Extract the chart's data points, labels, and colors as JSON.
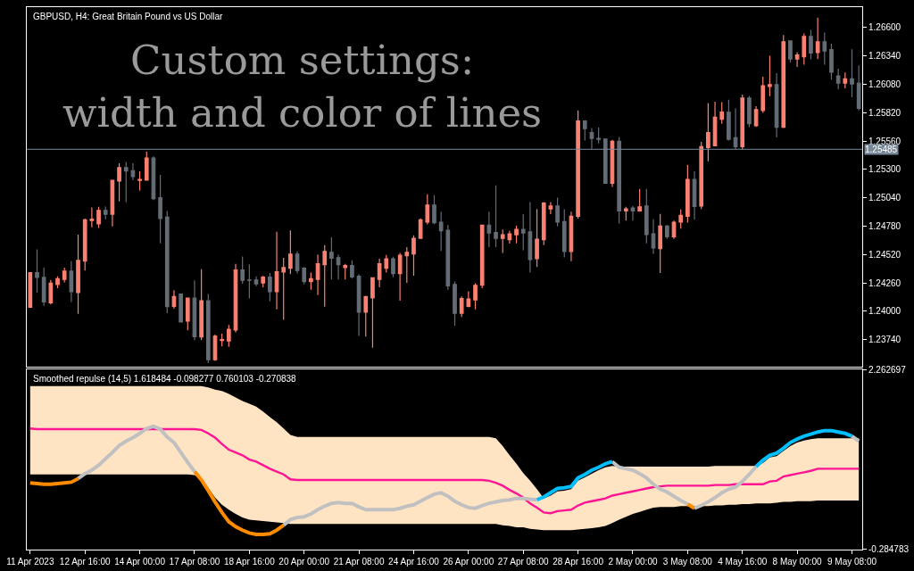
{
  "chart_data": [
    {
      "type": "candlestick",
      "title": "GBPUSD, H4: Great Britain Pound vs US Dollar",
      "annotations": [
        "Custom settings:\nwidth and color of lines"
      ],
      "categories": [
        null,
        null,
        null,
        null,
        null,
        null,
        null,
        null,
        null,
        null,
        null,
        null,
        null,
        null,
        null,
        null,
        null,
        null,
        null,
        null,
        null,
        null,
        null,
        null,
        null,
        null,
        null,
        null,
        null,
        null,
        null,
        null,
        null,
        null,
        null,
        null,
        null,
        null,
        null,
        null,
        null,
        null,
        null,
        null,
        null,
        null,
        null,
        null,
        null,
        null,
        null,
        null,
        null,
        null,
        null,
        null,
        null,
        null,
        null,
        null,
        null,
        null,
        null,
        null,
        null,
        null,
        null,
        null,
        null,
        null,
        null,
        null,
        null,
        null,
        null,
        null,
        null,
        null,
        null,
        null,
        null,
        null,
        null,
        null,
        null,
        null,
        null,
        null,
        null,
        null,
        null,
        null,
        null,
        null,
        null,
        null,
        null,
        null,
        null,
        null,
        null,
        null,
        null,
        null,
        null,
        null,
        null,
        null,
        null,
        null,
        null,
        null,
        null,
        null,
        null,
        null,
        null,
        null,
        null,
        null,
        null,
        null
      ],
      "ohlc": [
        [
          1.24036,
          1.24354,
          1.24036,
          1.24354
        ],
        [
          1.24354,
          1.24567,
          1.24171,
          1.24311
        ],
        [
          1.24311,
          1.244,
          1.2405,
          1.24085
        ],
        [
          1.24077,
          1.24287,
          1.24063,
          1.24257
        ],
        [
          1.24246,
          1.24319,
          1.24211,
          1.24298
        ],
        [
          1.24292,
          1.244,
          1.24265,
          1.24368
        ],
        [
          1.24368,
          1.24459,
          1.24085,
          1.24179
        ],
        [
          1.24171,
          1.24702,
          1.23977,
          1.24467
        ],
        [
          1.24459,
          1.2485,
          1.24373,
          1.24839
        ],
        [
          1.24831,
          1.24952,
          1.24769,
          1.24844
        ],
        [
          1.24801,
          1.24957,
          1.24763,
          1.24925
        ],
        [
          1.24925,
          1.2496,
          1.24844,
          1.2489
        ],
        [
          1.2489,
          1.252,
          1.24777,
          1.252
        ],
        [
          1.25194,
          1.25356,
          1.25006,
          1.25316
        ],
        [
          1.25316,
          1.25369,
          1.24998,
          1.25286
        ],
        [
          1.25289,
          1.25356,
          1.25202,
          1.25235
        ],
        [
          1.252,
          1.25283,
          1.25108,
          1.25208
        ],
        [
          1.25202,
          1.25464,
          1.25202,
          1.25404
        ],
        [
          1.25404,
          1.25421,
          1.25019,
          1.25033
        ],
        [
          1.25041,
          1.25251,
          1.24623,
          1.2485
        ],
        [
          1.24863,
          1.2492,
          1.23982,
          1.24042
        ],
        [
          1.24044,
          1.24193,
          1.24023,
          1.24136
        ],
        [
          1.24158,
          1.24158,
          1.23902,
          1.23902
        ],
        [
          1.2391,
          1.2412,
          1.23826,
          1.2412
        ],
        [
          1.2412,
          1.24284,
          1.23735,
          1.23767
        ],
        [
          1.23764,
          1.24386,
          1.23735,
          1.24096
        ],
        [
          1.24096,
          1.24158,
          1.23525,
          1.23557
        ],
        [
          1.23557,
          1.23786,
          1.23546,
          1.23772
        ],
        [
          1.23732,
          1.23794,
          1.23678,
          1.2374
        ],
        [
          1.23727,
          1.23875,
          1.23673,
          1.23834
        ],
        [
          1.23829,
          1.24435,
          1.23807,
          1.24378
        ],
        [
          1.24378,
          1.24502,
          1.24252,
          1.24284
        ],
        [
          1.24287,
          1.2443,
          1.24117,
          1.24284
        ],
        [
          1.24287,
          1.24319,
          1.2423,
          1.24252
        ],
        [
          1.2426,
          1.24325,
          1.24219,
          1.24314
        ],
        [
          1.24314,
          1.24351,
          1.2409,
          1.24179
        ],
        [
          1.24179,
          1.24728,
          1.24018,
          1.24362
        ],
        [
          1.2436,
          1.24489,
          1.23921,
          1.244
        ],
        [
          1.24395,
          1.24742,
          1.24341,
          1.24524
        ],
        [
          1.24524,
          1.24548,
          1.24346,
          1.24373
        ],
        [
          1.24395,
          1.24405,
          1.24246,
          1.24271
        ],
        [
          1.24271,
          1.24354,
          1.24198,
          1.24298
        ],
        [
          1.24292,
          1.24521,
          1.24149,
          1.24435
        ],
        [
          1.24427,
          1.24607,
          1.24042,
          1.24548
        ],
        [
          1.2454,
          1.24677,
          1.24292,
          1.24486
        ],
        [
          1.24491,
          1.24521,
          1.24292,
          1.24427
        ],
        [
          1.244,
          1.24435,
          1.24292,
          1.24419
        ],
        [
          1.24419,
          1.24467,
          1.243,
          1.24314
        ],
        [
          1.24322,
          1.24338,
          1.23775,
          1.23991
        ],
        [
          1.23991,
          1.24136,
          1.23767,
          1.24136
        ],
        [
          1.24123,
          1.24311,
          1.23665,
          1.24306
        ],
        [
          1.24292,
          1.24481,
          1.24219,
          1.24435
        ],
        [
          1.24395,
          1.24516,
          1.24354,
          1.24481
        ],
        [
          1.24481,
          1.245,
          1.24311,
          1.24346
        ],
        [
          1.24346,
          1.24535,
          1.24098,
          1.24513
        ],
        [
          1.24508,
          1.24588,
          1.2426,
          1.2454
        ],
        [
          1.24526,
          1.24696,
          1.24327,
          1.24669
        ],
        [
          1.24669,
          1.24852,
          1.24669,
          1.24839
        ],
        [
          1.24817,
          1.25073,
          1.24796,
          1.24974
        ],
        [
          1.24974,
          1.25065,
          1.24798,
          1.24812
        ],
        [
          1.24817,
          1.24912,
          1.24553,
          1.24737
        ],
        [
          1.24742,
          1.2479,
          1.24198,
          1.24233
        ],
        [
          1.24246,
          1.24273,
          1.23867,
          1.23982
        ],
        [
          1.23982,
          1.24136,
          1.23947,
          1.24117
        ],
        [
          1.24044,
          1.24184,
          1.24036,
          1.24112
        ],
        [
          1.24104,
          1.24257,
          1.24018,
          1.24238
        ],
        [
          1.24238,
          1.2479,
          1.24211,
          1.2479
        ],
        [
          1.2479,
          1.24912,
          1.24588,
          1.24718
        ],
        [
          1.24723,
          1.25154,
          1.24588,
          1.24669
        ],
        [
          1.24669,
          1.2475,
          1.24535,
          1.24702
        ],
        [
          1.24656,
          1.24737,
          1.24621,
          1.2471
        ],
        [
          1.24702,
          1.24785,
          1.24623,
          1.2475
        ],
        [
          1.2475,
          1.2489,
          1.24559,
          1.24718
        ],
        [
          1.24728,
          1.25,
          1.24354,
          1.24475
        ],
        [
          1.24483,
          1.24938,
          1.24405,
          1.24661
        ],
        [
          1.24656,
          1.25,
          1.24607,
          1.24992
        ],
        [
          1.24938,
          1.25,
          1.2489,
          1.24965
        ],
        [
          1.24965,
          1.25041,
          1.24777,
          1.24817
        ],
        [
          1.24823,
          1.24936,
          1.24494,
          1.24548
        ],
        [
          1.24548,
          1.24912,
          1.24459,
          1.24871
        ],
        [
          1.24871,
          1.25841,
          1.2485,
          1.25744
        ],
        [
          1.25744,
          1.25752,
          1.25566,
          1.25674
        ],
        [
          1.25639,
          1.25679,
          1.2549,
          1.25585
        ],
        [
          1.25585,
          1.25684,
          1.25539,
          1.25577
        ],
        [
          1.25579,
          1.25579,
          1.25173,
          1.25173
        ],
        [
          1.25173,
          1.25571,
          1.2514,
          1.25558
        ],
        [
          1.25558,
          1.25598,
          1.24804,
          1.2492
        ],
        [
          1.2492,
          1.24957,
          1.24831,
          1.24938
        ],
        [
          1.24947,
          1.24965,
          1.24831,
          1.2492
        ],
        [
          1.2492,
          1.25122,
          1.24912,
          1.24957
        ],
        [
          1.24965,
          1.25122,
          1.24623,
          1.24704
        ],
        [
          1.2471,
          1.24844,
          1.24526,
          1.2458
        ],
        [
          1.24575,
          1.24893,
          1.24351,
          1.24782
        ],
        [
          1.24782,
          1.2479,
          1.24664,
          1.24683
        ],
        [
          1.24683,
          1.24831,
          1.24664,
          1.24817
        ],
        [
          1.24817,
          1.24933,
          1.24758,
          1.24879
        ],
        [
          1.24871,
          1.25342,
          1.24812,
          1.25208
        ],
        [
          1.25208,
          1.25283,
          1.24839,
          1.2496
        ],
        [
          1.24965,
          1.25553,
          1.24938,
          1.25509
        ],
        [
          1.25501,
          1.25908,
          1.25375,
          1.25639
        ],
        [
          1.25518,
          1.25921,
          1.25518,
          1.25779
        ],
        [
          1.2576,
          1.25916,
          1.25719,
          1.25827
        ],
        [
          1.25825,
          1.2594,
          1.25566,
          1.25577
        ],
        [
          1.2559,
          1.2586,
          1.25485,
          1.25509
        ],
        [
          1.25509,
          1.25986,
          1.25482,
          1.25954
        ],
        [
          1.25954,
          1.25975,
          1.25687,
          1.25719
        ],
        [
          1.25701,
          1.25881,
          1.2569,
          1.25849
        ],
        [
          1.25841,
          1.2615,
          1.25819,
          1.26067
        ],
        [
          1.26061,
          1.26342,
          1.25973,
          1.26078
        ],
        [
          1.26078,
          1.26183,
          1.25593,
          1.25687
        ],
        [
          1.25687,
          1.26533,
          1.25679,
          1.26471
        ],
        [
          1.26479,
          1.26479,
          1.2628,
          1.26312
        ],
        [
          1.26312,
          1.26374,
          1.26239,
          1.2635
        ],
        [
          1.26333,
          1.26546,
          1.26261,
          1.26519
        ],
        [
          1.26519,
          1.26579,
          1.26309,
          1.26368
        ],
        [
          1.26371,
          1.26692,
          1.26312,
          1.26471
        ],
        [
          1.26471,
          1.26554,
          1.26261,
          1.26385
        ],
        [
          1.26398,
          1.26452,
          1.26123,
          1.26191
        ],
        [
          1.26158,
          1.26223,
          1.26035,
          1.26091
        ],
        [
          1.26091,
          1.26188,
          1.26043,
          1.26131
        ],
        [
          1.26131,
          1.26401,
          1.25962,
          1.26083
        ],
        [
          1.26091,
          1.26253,
          1.25841,
          1.2586
        ]
      ],
      "colors": [
        "#fa8072",
        "#646c76",
        "#646c76",
        "#fa8072",
        "#fa8072",
        "#fa8072",
        "#646c76",
        "#fa8072",
        "#fa8072",
        "#fa8072",
        "#fa8072",
        "#646c76",
        "#fa8072",
        "#fa8072",
        "#646c76",
        "#646c76",
        "#fa8072",
        "#fa8072",
        "#646c76",
        "#646c76",
        "#646c76",
        "#fa8072",
        "#646c76",
        "#fa8072",
        "#646c76",
        "#fa8072",
        "#646c76",
        "#fa8072",
        "#fa8072",
        "#fa8072",
        "#fa8072",
        "#646c76",
        "#646c76",
        "#646c76",
        "#fa8072",
        "#646c76",
        "#fa8072",
        "#fa8072",
        "#fa8072",
        "#646c76",
        "#646c76",
        "#fa8072",
        "#fa8072",
        "#fa8072",
        "#646c76",
        "#646c76",
        "#fa8072",
        "#646c76",
        "#646c76",
        "#fa8072",
        "#fa8072",
        "#fa8072",
        "#fa8072",
        "#646c76",
        "#fa8072",
        "#fa8072",
        "#fa8072",
        "#fa8072",
        "#fa8072",
        "#646c76",
        "#646c76",
        "#646c76",
        "#646c76",
        "#fa8072",
        "#fa8072",
        "#fa8072",
        "#fa8072",
        "#646c76",
        "#646c76",
        "#fa8072",
        "#fa8072",
        "#fa8072",
        "#646c76",
        "#646c76",
        "#fa8072",
        "#fa8072",
        "#fa8072",
        "#646c76",
        "#646c76",
        "#fa8072",
        "#fa8072",
        "#646c76",
        "#646c76",
        "#646c76",
        "#646c76",
        "#fa8072",
        "#646c76",
        "#fa8072",
        "#646c76",
        "#fa8072",
        "#646c76",
        "#646c76",
        "#fa8072",
        "#646c76",
        "#fa8072",
        "#fa8072",
        "#fa8072",
        "#646c76",
        "#fa8072",
        "#fa8072",
        "#fa8072",
        "#fa8072",
        "#646c76",
        "#646c76",
        "#fa8072",
        "#646c76",
        "#fa8072",
        "#fa8072",
        "#fa8072",
        "#646c76",
        "#fa8072",
        "#646c76",
        "#fa8072",
        "#fa8072",
        "#646c76",
        "#fa8072",
        "#646c76",
        "#646c76",
        "#646c76",
        "#fa8072",
        "#646c76",
        "#646c76"
      ],
      "ylim": [
        1.23489,
        1.26788
      ],
      "yticks": [
        {
          "value": 1.266,
          "label": "1.26600"
        },
        {
          "value": 1.2634,
          "label": "1.26340"
        },
        {
          "value": 1.2608,
          "label": "1.26080"
        },
        {
          "value": 1.2582,
          "label": "1.25820"
        },
        {
          "value": 1.2556,
          "label": "1.25560"
        },
        {
          "value": 1.253,
          "label": "1.25300"
        },
        {
          "value": 1.2504,
          "label": "1.25040"
        },
        {
          "value": 1.2478,
          "label": "1.24780"
        },
        {
          "value": 1.2452,
          "label": "1.24520"
        },
        {
          "value": 1.2426,
          "label": "1.24260"
        },
        {
          "value": 1.24,
          "label": "1.24000"
        },
        {
          "value": 1.2374,
          "label": "1.23740"
        }
      ],
      "ref_lines": [
        {
          "axis": "y",
          "value": 1.25485,
          "label": "1.25485",
          "color": "#778899"
        }
      ],
      "tick_labels": "y"
    },
    {
      "type": "line",
      "title": "Smoothed repulse (14,5) 1.618484 -0.098277 0.760103 -0.270838",
      "categories": [
        "11 Apr 2023",
        null,
        null,
        null,
        null,
        null,
        null,
        null,
        "12 Apr 16:00",
        null,
        null,
        null,
        null,
        null,
        null,
        null,
        "14 Apr 00:00",
        null,
        null,
        null,
        null,
        null,
        null,
        null,
        "17 Apr 08:00",
        null,
        null,
        null,
        null,
        null,
        null,
        null,
        "18 Apr 16:00",
        null,
        null,
        null,
        null,
        null,
        null,
        null,
        "20 Apr 00:00",
        null,
        null,
        null,
        null,
        null,
        null,
        null,
        "21 Apr 08:00",
        null,
        null,
        null,
        null,
        null,
        null,
        null,
        "24 Apr 16:00",
        null,
        null,
        null,
        null,
        null,
        null,
        null,
        "26 Apr 00:00",
        null,
        null,
        null,
        null,
        null,
        null,
        null,
        "27 Apr 08:00",
        null,
        null,
        null,
        null,
        null,
        null,
        null,
        "28 Apr 16:00",
        null,
        null,
        null,
        null,
        null,
        null,
        null,
        "2 May 00:00",
        null,
        null,
        null,
        null,
        null,
        null,
        null,
        "3 May 08:00",
        null,
        null,
        null,
        null,
        null,
        null,
        null,
        "4 May 16:00",
        null,
        null,
        null,
        null,
        null,
        null,
        null,
        "8 May 00:00",
        null,
        null,
        null,
        null,
        null,
        null,
        null,
        "9 May 08:00",
        null
      ],
      "series": [
        {
          "color": "#ff1493",
          "values": [
            1.43,
            1.42,
            1.42,
            1.42,
            1.42,
            1.42,
            1.42,
            1.42,
            1.42,
            1.42,
            1.42,
            1.42,
            1.42,
            1.42,
            1.42,
            1.42,
            1.42,
            1.42,
            1.42,
            1.42,
            1.42,
            1.42,
            1.42,
            1.42,
            1.42,
            1.41,
            1.36,
            1.3,
            1.21,
            1.13,
            1.09,
            1.05,
            0.99,
            0.96,
            0.91,
            0.86,
            0.82,
            0.78,
            0.71,
            0.7,
            0.7,
            0.7,
            0.7,
            0.7,
            0.7,
            0.7,
            0.7,
            0.7,
            0.7,
            0.7,
            0.7,
            0.7,
            0.7,
            0.7,
            0.7,
            0.7,
            0.7,
            0.7,
            0.7,
            0.7,
            0.7,
            0.7,
            0.7,
            0.7,
            0.7,
            0.7,
            0.7,
            0.69,
            0.66,
            0.62,
            0.56,
            0.51,
            0.45,
            0.37,
            0.31,
            0.24,
            0.23,
            0.26,
            0.27,
            0.28,
            0.34,
            0.38,
            0.4,
            0.42,
            0.44,
            0.48,
            0.5,
            0.52,
            0.54,
            0.56,
            0.58,
            0.6,
            0.61,
            0.62,
            0.62,
            0.62,
            0.62,
            0.62,
            0.62,
            0.62,
            0.63,
            0.63,
            0.63,
            0.64,
            0.64,
            0.64,
            0.64,
            0.64,
            0.68,
            0.69,
            0.75,
            0.77,
            0.79,
            0.81,
            0.83,
            0.86,
            0.86,
            0.86,
            0.86,
            0.86,
            0.86,
            0.86
          ],
          "upper": [
            2.03,
            2.03,
            2.03,
            2.03,
            2.03,
            2.03,
            2.03,
            2.03,
            2.03,
            2.03,
            2.03,
            2.03,
            2.03,
            2.03,
            2.03,
            2.03,
            2.03,
            2.03,
            2.03,
            2.03,
            2.03,
            2.03,
            2.03,
            2.03,
            2.03,
            2.03,
            2.01,
            1.98,
            1.96,
            1.92,
            1.87,
            1.82,
            1.78,
            1.74,
            1.67,
            1.59,
            1.52,
            1.43,
            1.34,
            1.31,
            1.31,
            1.31,
            1.31,
            1.31,
            1.31,
            1.31,
            1.31,
            1.31,
            1.31,
            1.31,
            1.31,
            1.31,
            1.31,
            1.31,
            1.31,
            1.31,
            1.31,
            1.31,
            1.31,
            1.31,
            1.31,
            1.31,
            1.31,
            1.31,
            1.31,
            1.31,
            1.31,
            1.31,
            1.29,
            1.18,
            1.05,
            0.93,
            0.8,
            0.69,
            0.57,
            0.44,
            0.48,
            0.54,
            0.55,
            0.57,
            0.69,
            0.74,
            0.79,
            0.84,
            0.88,
            0.9,
            0.89,
            0.89,
            0.89,
            0.89,
            0.89,
            0.89,
            0.89,
            0.89,
            0.89,
            0.89,
            0.89,
            0.89,
            0.89,
            0.89,
            0.9,
            0.9,
            0.9,
            0.9,
            0.9,
            0.9,
            0.9,
            0.94,
            1.02,
            1.04,
            1.11,
            1.18,
            1.23,
            1.26,
            1.28,
            1.29,
            1.29,
            1.29,
            1.29,
            1.29,
            1.29,
            1.29
          ],
          "lower": [
            0.78,
            0.78,
            0.78,
            0.78,
            0.78,
            0.78,
            0.78,
            0.78,
            0.78,
            0.78,
            0.78,
            0.78,
            0.78,
            0.78,
            0.78,
            0.78,
            0.78,
            0.78,
            0.78,
            0.78,
            0.78,
            0.78,
            0.78,
            0.78,
            0.77,
            0.71,
            0.59,
            0.45,
            0.35,
            0.28,
            0.22,
            0.17,
            0.14,
            0.13,
            0.12,
            0.11,
            0.1,
            0.09,
            0.08,
            0.08,
            0.08,
            0.08,
            0.08,
            0.08,
            0.08,
            0.08,
            0.08,
            0.08,
            0.08,
            0.08,
            0.08,
            0.08,
            0.08,
            0.08,
            0.08,
            0.08,
            0.08,
            0.08,
            0.08,
            0.08,
            0.08,
            0.08,
            0.08,
            0.08,
            0.08,
            0.08,
            0.08,
            0.08,
            0.08,
            0.06,
            0.05,
            0.03,
            0.03,
            0.01,
            0.0,
            -0.01,
            -0.01,
            -0.01,
            -0.01,
            -0.01,
            0.0,
            0.01,
            0.02,
            0.03,
            0.05,
            0.09,
            0.14,
            0.18,
            0.22,
            0.25,
            0.28,
            0.31,
            0.32,
            0.32,
            0.32,
            0.33,
            0.33,
            0.33,
            0.33,
            0.33,
            0.34,
            0.34,
            0.35,
            0.35,
            0.36,
            0.36,
            0.37,
            0.37,
            0.37,
            0.38,
            0.39,
            0.39,
            0.4,
            0.4,
            0.4,
            0.41,
            0.41,
            0.41,
            0.41,
            0.41,
            0.41,
            0.41
          ]
        },
        {
          "color": "#ff8c00",
          "values": [
            0.66,
            0.65,
            0.64,
            0.64,
            0.65,
            0.66,
            0.67,
            0.72,
            null,
            null,
            null,
            null,
            null,
            null,
            null,
            null,
            null,
            null,
            null,
            null,
            null,
            null,
            null,
            null,
            0.82,
            0.7,
            0.55,
            0.39,
            0.24,
            0.11,
            0.04,
            -0.01,
            -0.05,
            -0.07,
            -0.07,
            -0.06,
            -0.01,
            0.06,
            null,
            null,
            null,
            null,
            null,
            null,
            null,
            null,
            null,
            null,
            null,
            null,
            null,
            null,
            null,
            null,
            null,
            null,
            null,
            null,
            null,
            null,
            null,
            null,
            null,
            null,
            null,
            null,
            null,
            null,
            null,
            null,
            null,
            null,
            null,
            null,
            null,
            null,
            null,
            null,
            null,
            null,
            null,
            null,
            null,
            null,
            null,
            null,
            null,
            null,
            null,
            null,
            null,
            null,
            null,
            null,
            null,
            null,
            0.36,
            0.3,
            null,
            null,
            null,
            null,
            null,
            null,
            null,
            null,
            null,
            null,
            null,
            null,
            null,
            null,
            null,
            null,
            null,
            null,
            null,
            null,
            null,
            null,
            null,
            null
          ]
        },
        {
          "color": "#c0c0c0",
          "values": [
            null,
            null,
            null,
            null,
            null,
            null,
            null,
            0.72,
            0.79,
            0.84,
            0.91,
            1.0,
            1.09,
            1.19,
            1.25,
            1.3,
            1.36,
            1.43,
            1.46,
            1.42,
            1.31,
            1.23,
            1.09,
            0.95,
            0.82,
            null,
            null,
            null,
            null,
            null,
            null,
            null,
            null,
            null,
            null,
            null,
            null,
            0.06,
            0.14,
            0.17,
            0.18,
            0.22,
            0.28,
            0.33,
            0.37,
            0.38,
            0.37,
            0.37,
            0.32,
            0.28,
            0.28,
            0.28,
            0.28,
            0.28,
            0.3,
            0.33,
            0.35,
            0.4,
            0.45,
            0.5,
            0.52,
            0.47,
            0.4,
            0.35,
            0.31,
            0.3,
            0.34,
            0.37,
            0.39,
            0.41,
            0.42,
            0.44,
            0.44,
            0.43,
            0.42,
            null,
            null,
            null,
            null,
            null,
            null,
            null,
            null,
            null,
            null,
            null,
            null,
            null,
            null,
            null,
            null,
            null,
            null,
            null,
            null,
            null,
            null,
            0.3,
            0.34,
            0.39,
            0.45,
            0.52,
            0.57,
            0.6,
            0.68,
            0.78,
            0.89,
            null,
            null,
            null,
            null,
            null,
            null,
            null,
            null,
            null,
            null,
            null,
            null,
            null,
            1.32,
            1.25
          ]
        },
        {
          "color": "#c0c0c0",
          "values": [
            null,
            null,
            null,
            null,
            null,
            null,
            null,
            null,
            null,
            null,
            null,
            null,
            null,
            null,
            null,
            null,
            null,
            null,
            null,
            null,
            null,
            null,
            null,
            null,
            null,
            null,
            null,
            null,
            null,
            null,
            null,
            null,
            null,
            null,
            null,
            null,
            null,
            null,
            null,
            null,
            null,
            null,
            null,
            null,
            null,
            null,
            null,
            null,
            null,
            null,
            null,
            null,
            null,
            null,
            null,
            null,
            null,
            null,
            null,
            null,
            null,
            null,
            null,
            null,
            null,
            null,
            null,
            null,
            null,
            null,
            null,
            null,
            null,
            null,
            null,
            null,
            null,
            null,
            null,
            null,
            null,
            null,
            null,
            null,
            null,
            0.96,
            0.88,
            0.86,
            0.84,
            0.79,
            0.73,
            0.64,
            0.57,
            0.53,
            0.47,
            0.41,
            0.36,
            null,
            null,
            null,
            null,
            null,
            null,
            null,
            null,
            null,
            null,
            null,
            null,
            null,
            null,
            null,
            null,
            null,
            null,
            null,
            null,
            null,
            null,
            null,
            null,
            null
          ]
        },
        {
          "color": "#00bfff",
          "values": [
            null,
            null,
            null,
            null,
            null,
            null,
            null,
            null,
            null,
            null,
            null,
            null,
            null,
            null,
            null,
            null,
            null,
            null,
            null,
            null,
            null,
            null,
            null,
            null,
            null,
            null,
            null,
            null,
            null,
            null,
            null,
            null,
            null,
            null,
            null,
            null,
            null,
            null,
            null,
            null,
            null,
            null,
            null,
            null,
            null,
            null,
            null,
            null,
            null,
            null,
            null,
            null,
            null,
            null,
            null,
            null,
            null,
            null,
            null,
            null,
            null,
            null,
            null,
            null,
            null,
            null,
            null,
            null,
            null,
            null,
            null,
            null,
            null,
            null,
            0.42,
            0.46,
            0.52,
            0.58,
            0.59,
            0.61,
            0.73,
            0.78,
            0.84,
            0.88,
            0.93,
            0.96,
            null,
            null,
            null,
            null,
            null,
            null,
            null,
            null,
            null,
            null,
            null,
            null,
            null,
            null,
            null,
            null,
            null,
            null,
            null,
            null,
            0.89,
            0.98,
            1.05,
            1.08,
            1.15,
            1.23,
            1.28,
            1.32,
            1.35,
            1.38,
            1.4,
            1.4,
            1.38,
            1.36,
            1.32,
            null
          ]
        }
      ],
      "ylim": [
        -0.284783,
        2.262697
      ],
      "yticks": [
        2.262697,
        -0.284783
      ]
    }
  ]
}
